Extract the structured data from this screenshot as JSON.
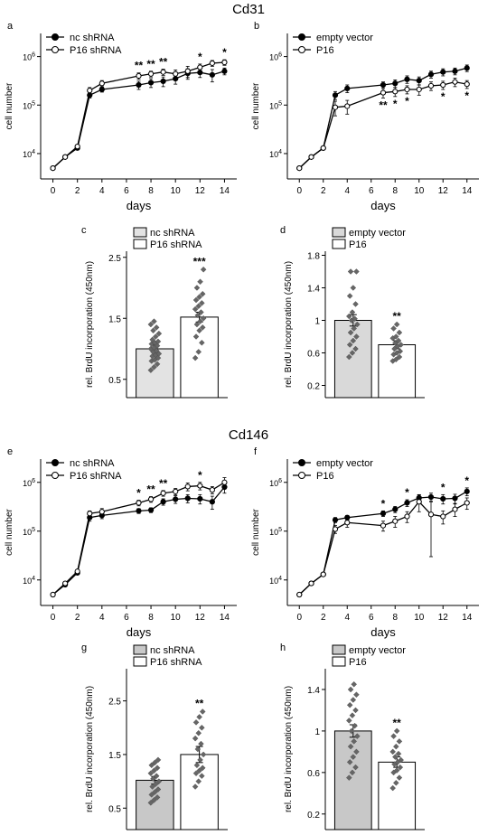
{
  "section_titles": [
    "Cd31",
    "Cd146"
  ],
  "chart_data": [
    {
      "id": "a",
      "panel_label": "a",
      "type": "line",
      "xlabel": "days",
      "ylabel": "cell number",
      "xlim": [
        -1,
        15
      ],
      "xticks": [
        "0",
        "2",
        "4",
        "6",
        "8",
        "10",
        "12",
        "14"
      ],
      "y_scale": "log",
      "ylim": [
        3000,
        3000000
      ],
      "y_ticklabels": [
        {
          "v": 10000,
          "base": "10",
          "exp": "4"
        },
        {
          "v": 100000,
          "base": "10",
          "exp": "5"
        },
        {
          "v": 1000000,
          "base": "10",
          "exp": "6"
        }
      ],
      "legend_position": "top-left",
      "series": [
        {
          "name": "nc shRNA",
          "marker": "filled",
          "x": [
            0,
            1,
            2,
            3,
            4,
            7,
            8,
            9,
            10,
            11,
            12,
            13,
            14
          ],
          "y": [
            5000,
            8500,
            13000,
            160000,
            210000,
            260000,
            290000,
            310000,
            350000,
            450000,
            470000,
            420000,
            500000
          ],
          "err": [
            0,
            0,
            1000,
            20000,
            25000,
            50000,
            60000,
            70000,
            80000,
            110000,
            100000,
            120000,
            80000
          ]
        },
        {
          "name": "P16 shRNA",
          "marker": "open",
          "x": [
            0,
            1,
            2,
            3,
            4,
            7,
            8,
            9,
            10,
            11,
            12,
            13,
            14
          ],
          "y": [
            5000,
            8500,
            14000,
            200000,
            280000,
            400000,
            440000,
            480000,
            440000,
            500000,
            600000,
            730000,
            760000
          ],
          "err": [
            0,
            0,
            1000,
            30000,
            40000,
            60000,
            60000,
            70000,
            90000,
            130000,
            100000,
            100000,
            100000
          ]
        }
      ],
      "annotations": [
        {
          "x": 7,
          "text": "**"
        },
        {
          "x": 8,
          "text": "**"
        },
        {
          "x": 9,
          "text": "**"
        },
        {
          "x": 12,
          "text": "*"
        },
        {
          "x": 14,
          "text": "*"
        }
      ]
    },
    {
      "id": "b",
      "panel_label": "b",
      "type": "line",
      "xlabel": "days",
      "ylabel": "cell number",
      "xlim": [
        -1,
        15
      ],
      "xticks": [
        "0",
        "2",
        "4",
        "6",
        "8",
        "10",
        "12",
        "14"
      ],
      "y_scale": "log",
      "ylim": [
        3000,
        3000000
      ],
      "y_ticklabels": [
        {
          "v": 10000,
          "base": "10",
          "exp": "4"
        },
        {
          "v": 100000,
          "base": "10",
          "exp": "5"
        },
        {
          "v": 1000000,
          "base": "10",
          "exp": "6"
        }
      ],
      "legend_position": "top-left",
      "series": [
        {
          "name": "empty vector",
          "marker": "filled",
          "x": [
            0,
            1,
            2,
            3,
            4,
            7,
            8,
            9,
            10,
            11,
            12,
            13,
            14
          ],
          "y": [
            5000,
            8500,
            13000,
            160000,
            220000,
            260000,
            280000,
            340000,
            320000,
            430000,
            480000,
            500000,
            580000
          ],
          "err": [
            0,
            0,
            1000,
            30000,
            40000,
            40000,
            50000,
            60000,
            60000,
            70000,
            80000,
            80000,
            90000
          ]
        },
        {
          "name": "P16",
          "marker": "open",
          "x": [
            0,
            1,
            2,
            3,
            4,
            7,
            8,
            9,
            10,
            11,
            12,
            13,
            14
          ],
          "y": [
            5000,
            8500,
            13000,
            90000,
            95000,
            180000,
            190000,
            210000,
            210000,
            250000,
            260000,
            300000,
            270000
          ],
          "err": [
            0,
            0,
            1000,
            30000,
            30000,
            40000,
            40000,
            40000,
            50000,
            50000,
            50000,
            60000,
            50000
          ]
        }
      ],
      "annotations": [
        {
          "x": 7,
          "text": "**"
        },
        {
          "x": 8,
          "text": "*"
        },
        {
          "x": 9,
          "text": "*"
        },
        {
          "x": 12,
          "text": "*"
        },
        {
          "x": 14,
          "text": "*"
        }
      ]
    },
    {
      "id": "c",
      "panel_label": "c",
      "type": "bar",
      "ylabel": "rel. BrdU incorporation (450nm)",
      "ylim": [
        0.2,
        2.6
      ],
      "yticks": [
        "0.5",
        "1.5",
        "2.5"
      ],
      "legend_position": "top",
      "categories": [
        "nc shRNA",
        "P16 shRNA"
      ],
      "values": [
        1.0,
        1.52
      ],
      "err": [
        0.06,
        0.08
      ],
      "bar_colors": [
        "#e3e3e3",
        "#ffffff"
      ],
      "points": [
        [
          0.65,
          0.7,
          0.75,
          0.8,
          0.82,
          0.85,
          0.88,
          0.9,
          0.92,
          0.95,
          0.97,
          1.0,
          1.02,
          1.05,
          1.08,
          1.1,
          1.12,
          1.15,
          1.2,
          1.25,
          1.3,
          1.35,
          1.4,
          1.45
        ],
        [
          0.85,
          0.95,
          1.1,
          1.2,
          1.3,
          1.35,
          1.4,
          1.45,
          1.5,
          1.55,
          1.6,
          1.65,
          1.7,
          1.75,
          1.8,
          1.85,
          1.9,
          2.0,
          2.1,
          2.3
        ]
      ],
      "annotations": [
        {
          "index": 1,
          "text": "***"
        }
      ]
    },
    {
      "id": "d",
      "panel_label": "d",
      "type": "bar",
      "ylabel": "rel. BrdU incorporation (450nm)",
      "ylim": [
        0.05,
        1.85
      ],
      "yticks": [
        "0.2",
        "0.6",
        "1",
        "1.4",
        "1.8"
      ],
      "legend_position": "top",
      "categories": [
        "empty vector",
        "P16"
      ],
      "values": [
        1.0,
        0.7
      ],
      "err": [
        0.07,
        0.05
      ],
      "bar_colors": [
        "#d9d9d9",
        "#ffffff"
      ],
      "points": [
        [
          0.55,
          0.6,
          0.65,
          0.7,
          0.75,
          0.8,
          0.85,
          0.9,
          0.95,
          1.0,
          1.02,
          1.05,
          1.1,
          1.2,
          1.3,
          1.4,
          1.6,
          1.6
        ],
        [
          0.5,
          0.52,
          0.55,
          0.58,
          0.6,
          0.62,
          0.65,
          0.68,
          0.7,
          0.72,
          0.75,
          0.78,
          0.8,
          0.85,
          0.9,
          0.95
        ]
      ],
      "annotations": [
        {
          "index": 1,
          "text": "**"
        }
      ]
    },
    {
      "id": "e",
      "panel_label": "e",
      "type": "line",
      "xlabel": "days",
      "ylabel": "cell number",
      "xlim": [
        -1,
        15
      ],
      "xticks": [
        "0",
        "2",
        "4",
        "6",
        "8",
        "10",
        "12",
        "14"
      ],
      "y_scale": "log",
      "ylim": [
        3000,
        3000000
      ],
      "y_ticklabels": [
        {
          "v": 10000,
          "base": "10",
          "exp": "4"
        },
        {
          "v": 100000,
          "base": "10",
          "exp": "5"
        },
        {
          "v": 1000000,
          "base": "10",
          "exp": "6"
        }
      ],
      "legend_position": "top-left",
      "series": [
        {
          "name": "nc shRNA",
          "marker": "filled",
          "x": [
            0,
            1,
            2,
            3,
            4,
            7,
            8,
            9,
            10,
            11,
            12,
            13,
            14
          ],
          "y": [
            5000,
            8000,
            14000,
            190000,
            210000,
            260000,
            270000,
            400000,
            450000,
            470000,
            460000,
            400000,
            800000
          ],
          "err": [
            0,
            0,
            1000,
            30000,
            30000,
            30000,
            30000,
            60000,
            80000,
            90000,
            100000,
            120000,
            200000
          ]
        },
        {
          "name": "P16 shRNA",
          "marker": "open",
          "x": [
            0,
            1,
            2,
            3,
            4,
            7,
            8,
            9,
            10,
            11,
            12,
            13,
            14
          ],
          "y": [
            5000,
            8500,
            15000,
            230000,
            250000,
            380000,
            450000,
            600000,
            650000,
            820000,
            850000,
            700000,
            1000000
          ],
          "err": [
            0,
            0,
            1000,
            30000,
            40000,
            50000,
            60000,
            80000,
            100000,
            150000,
            150000,
            120000,
            250000
          ]
        }
      ],
      "annotations": [
        {
          "x": 7,
          "text": "*"
        },
        {
          "x": 8,
          "text": "**"
        },
        {
          "x": 9,
          "text": "**"
        },
        {
          "x": 12,
          "text": "*"
        }
      ]
    },
    {
      "id": "f",
      "panel_label": "f",
      "type": "line",
      "xlabel": "days",
      "ylabel": "cell number",
      "xlim": [
        -1,
        15
      ],
      "xticks": [
        "0",
        "2",
        "4",
        "6",
        "8",
        "10",
        "12",
        "14"
      ],
      "y_scale": "log",
      "ylim": [
        3000,
        3000000
      ],
      "y_ticklabels": [
        {
          "v": 10000,
          "base": "10",
          "exp": "4"
        },
        {
          "v": 100000,
          "base": "10",
          "exp": "5"
        },
        {
          "v": 1000000,
          "base": "10",
          "exp": "6"
        }
      ],
      "legend_position": "top-left",
      "series": [
        {
          "name": "empty vector",
          "marker": "filled",
          "x": [
            0,
            1,
            2,
            3,
            4,
            7,
            8,
            9,
            10,
            11,
            12,
            13,
            14
          ],
          "y": [
            5000,
            8500,
            13000,
            170000,
            190000,
            230000,
            280000,
            380000,
            480000,
            500000,
            460000,
            470000,
            650000
          ],
          "err": [
            0,
            0,
            1000,
            20000,
            20000,
            30000,
            40000,
            60000,
            80000,
            100000,
            100000,
            100000,
            120000
          ]
        },
        {
          "name": "P16",
          "marker": "open",
          "x": [
            0,
            1,
            2,
            3,
            4,
            7,
            8,
            9,
            10,
            11,
            12,
            13,
            14
          ],
          "y": [
            5000,
            8500,
            13000,
            110000,
            150000,
            130000,
            160000,
            200000,
            400000,
            220000,
            200000,
            280000,
            380000
          ],
          "err": [
            0,
            0,
            1000,
            20000,
            30000,
            30000,
            40000,
            50000,
            150000,
            190000,
            60000,
            80000,
            100000
          ]
        }
      ],
      "annotations": [
        {
          "x": 7,
          "text": "*"
        },
        {
          "x": 9,
          "text": "*"
        },
        {
          "x": 12,
          "text": "*"
        },
        {
          "x": 14,
          "text": "*"
        }
      ]
    },
    {
      "id": "g",
      "panel_label": "g",
      "type": "bar",
      "ylabel": "rel. BrdU incorporation (450nm)",
      "ylim": [
        0.1,
        3.1
      ],
      "yticks": [
        "0.5",
        "1.5",
        "2.5"
      ],
      "legend_position": "top",
      "categories": [
        "nc shRNA",
        "P16 shRNA"
      ],
      "values": [
        1.02,
        1.5
      ],
      "err": [
        0.07,
        0.15
      ],
      "bar_colors": [
        "#c8c8c8",
        "#ffffff"
      ],
      "points": [
        [
          0.6,
          0.65,
          0.7,
          0.75,
          0.8,
          0.85,
          0.9,
          0.95,
          1.0,
          1.05,
          1.1,
          1.15,
          1.2,
          1.25,
          1.3,
          1.35,
          1.4
        ],
        [
          0.9,
          1.0,
          1.1,
          1.15,
          1.2,
          1.25,
          1.3,
          1.4,
          1.5,
          1.6,
          1.7,
          1.8,
          1.9,
          2.0,
          2.1,
          2.2,
          2.3
        ]
      ],
      "annotations": [
        {
          "index": 1,
          "text": "**"
        }
      ]
    },
    {
      "id": "h",
      "panel_label": "h",
      "type": "bar",
      "ylabel": "rel. BrdU incorporation (450nm)",
      "ylim": [
        0.05,
        1.6
      ],
      "yticks": [
        "0.2",
        "0.6",
        "1",
        "1.4"
      ],
      "legend_position": "top",
      "categories": [
        "empty vector",
        "P16"
      ],
      "values": [
        1.0,
        0.7
      ],
      "err": [
        0.06,
        0.05
      ],
      "bar_colors": [
        "#c8c8c8",
        "#ffffff"
      ],
      "points": [
        [
          0.55,
          0.6,
          0.65,
          0.7,
          0.75,
          0.8,
          0.85,
          0.9,
          0.95,
          1.0,
          1.05,
          1.1,
          1.15,
          1.2,
          1.25,
          1.3,
          1.35,
          1.4,
          1.45
        ],
        [
          0.45,
          0.5,
          0.55,
          0.6,
          0.62,
          0.65,
          0.68,
          0.7,
          0.72,
          0.75,
          0.78,
          0.8,
          0.85,
          0.9,
          0.95,
          1.0
        ]
      ],
      "annotations": [
        {
          "index": 1,
          "text": "**"
        }
      ]
    }
  ]
}
